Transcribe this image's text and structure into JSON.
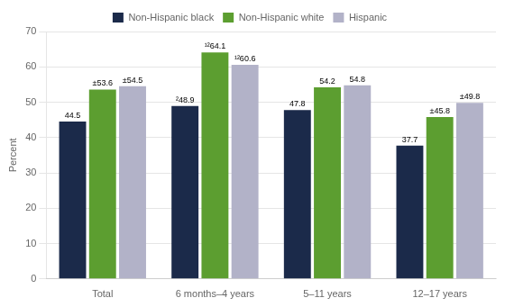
{
  "chart_data": {
    "type": "bar",
    "categories": [
      "Total",
      "6 months–4 years",
      "5–11 years",
      "12–17 years"
    ],
    "series": [
      {
        "name": "Non-Hispanic black",
        "color": "#1b2a4a",
        "values": [
          44.5,
          48.9,
          47.8,
          37.7
        ],
        "value_labels": [
          "44.5",
          "²48.9",
          "47.8",
          "37.7"
        ]
      },
      {
        "name": "Non-Hispanic white",
        "color": "#5c9e30",
        "values": [
          53.6,
          64.1,
          54.2,
          45.8
        ],
        "value_labels": [
          "±53.6",
          "¹²64.1",
          "54.2",
          "±45.8"
        ]
      },
      {
        "name": "Hispanic",
        "color": "#b2b2c8",
        "values": [
          54.5,
          60.6,
          54.8,
          49.8
        ],
        "value_labels": [
          "±54.5",
          "¹²60.6",
          "54.8",
          "±49.8"
        ]
      }
    ],
    "ylabel": "Percent",
    "ylim": [
      0,
      70
    ],
    "yticks": [
      0,
      10,
      20,
      30,
      40,
      50,
      60,
      70
    ],
    "grid": true,
    "legend": "top",
    "data_labels": true
  }
}
